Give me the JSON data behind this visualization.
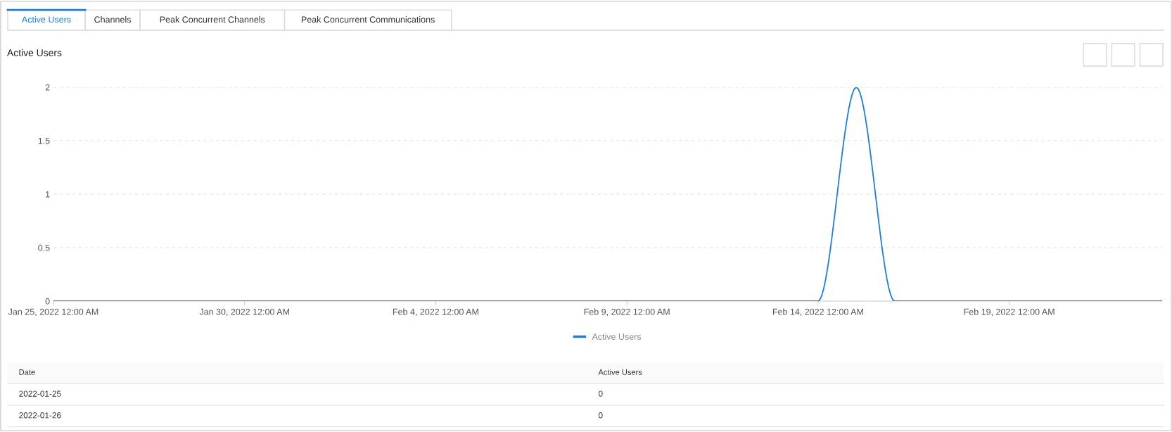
{
  "chart_data": {
    "type": "line",
    "title": "Active Users",
    "x": [
      "2022-01-25",
      "2022-01-26",
      "2022-01-27",
      "2022-01-28",
      "2022-01-29",
      "2022-01-30",
      "2022-01-31",
      "2022-02-01",
      "2022-02-02",
      "2022-02-03",
      "2022-02-04",
      "2022-02-05",
      "2022-02-06",
      "2022-02-07",
      "2022-02-08",
      "2022-02-09",
      "2022-02-10",
      "2022-02-11",
      "2022-02-12",
      "2022-02-13",
      "2022-02-14",
      "2022-02-15",
      "2022-02-16",
      "2022-02-17",
      "2022-02-18",
      "2022-02-19",
      "2022-02-20",
      "2022-02-21",
      "2022-02-22",
      "2022-02-23"
    ],
    "series": [
      {
        "name": "Active Users",
        "color": "#1f7fdc",
        "values": [
          0,
          0,
          0,
          0,
          0,
          0,
          0,
          0,
          0,
          0,
          0,
          0,
          0,
          0,
          0,
          0,
          0,
          0,
          0,
          0,
          0,
          2,
          0,
          0,
          0,
          0,
          0,
          0,
          0,
          0
        ]
      }
    ],
    "xlim": [
      "2022-01-25",
      "2022-02-23"
    ],
    "xticks": [
      {
        "value": "2022-01-25",
        "label": "Jan 25, 2022 12:00 AM"
      },
      {
        "value": "2022-01-30",
        "label": "Jan 30, 2022 12:00 AM"
      },
      {
        "value": "2022-02-04",
        "label": "Feb 4, 2022 12:00 AM"
      },
      {
        "value": "2022-02-09",
        "label": "Feb 9, 2022 12:00 AM"
      },
      {
        "value": "2022-02-14",
        "label": "Feb 14, 2022 12:00 AM"
      },
      {
        "value": "2022-02-19",
        "label": "Feb 19, 2022 12:00 AM"
      }
    ],
    "ylim": [
      0,
      2
    ],
    "yticks": [
      0,
      {
        "value": 0.5,
        "label": "0.5"
      },
      1,
      {
        "value": 1.5,
        "label": "1.5"
      },
      2
    ],
    "grid": "y",
    "legend": "bottom",
    "marker": "none",
    "line_style": "solid",
    "annotations": [
      "Active Users",
      "Channels",
      "Peak Concurrent Channels",
      "Peak Concurrent Communications",
      "Date",
      "Active Users",
      "2022-01-25",
      "0",
      "2022-01-26",
      "0"
    ]
  }
}
